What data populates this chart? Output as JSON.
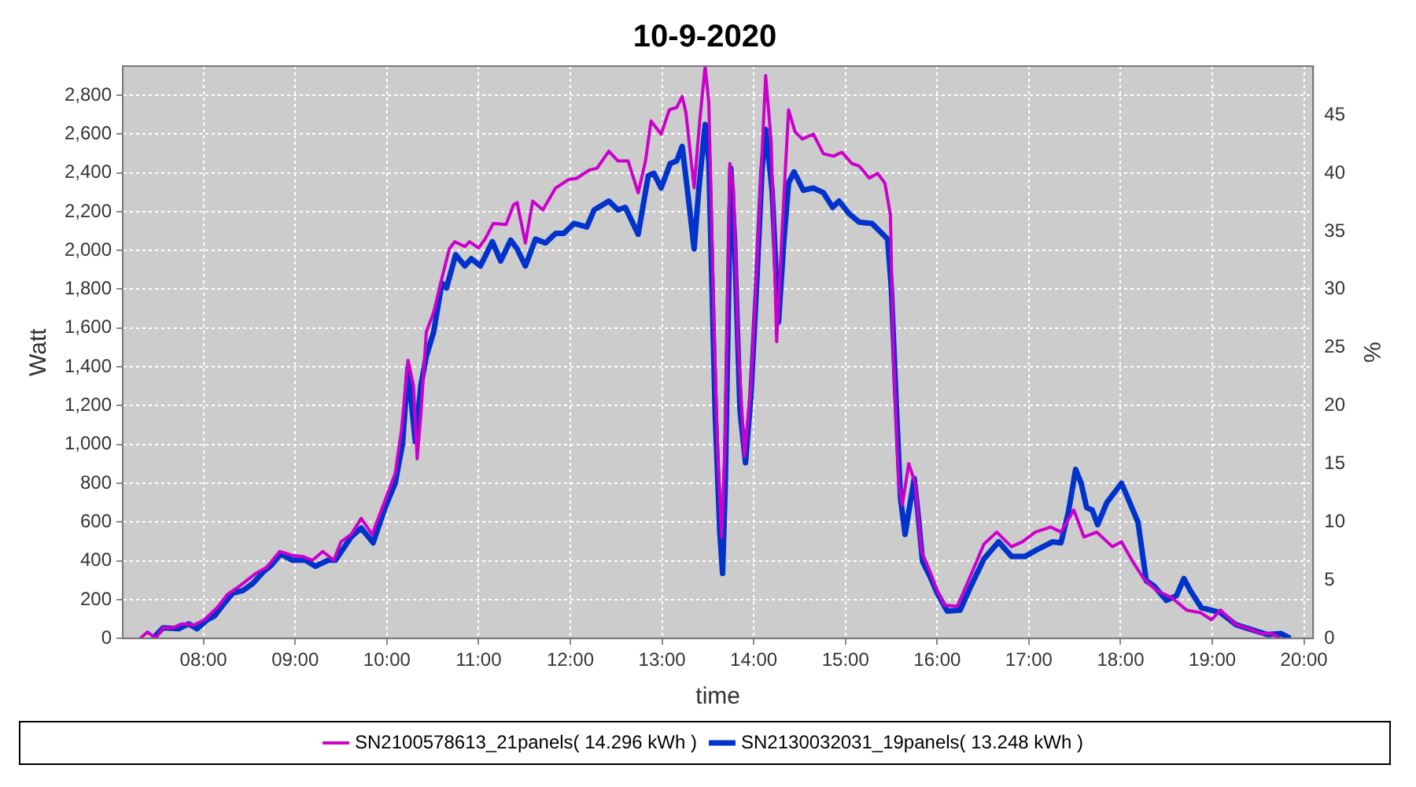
{
  "chart_data": {
    "type": "line",
    "title": "10-9-2020",
    "xlabel": "time",
    "ylabel": "Watt",
    "y2label": "%",
    "xlim": [
      7.12,
      20.1
    ],
    "xticks": [
      {
        "value": 8,
        "label": "08:00"
      },
      {
        "value": 9,
        "label": "09:00"
      },
      {
        "value": 10,
        "label": "10:00"
      },
      {
        "value": 11,
        "label": "11:00"
      },
      {
        "value": 12,
        "label": "12:00"
      },
      {
        "value": 13,
        "label": "13:00"
      },
      {
        "value": 14,
        "label": "14:00"
      },
      {
        "value": 15,
        "label": "15:00"
      },
      {
        "value": 16,
        "label": "16:00"
      },
      {
        "value": 17,
        "label": "17:00"
      },
      {
        "value": 18,
        "label": "18:00"
      },
      {
        "value": 19,
        "label": "19:00"
      },
      {
        "value": 20,
        "label": "20:00"
      }
    ],
    "ylim": [
      0,
      2950
    ],
    "yticks": [
      0,
      200,
      400,
      600,
      800,
      {
        "value": 1000,
        "label": "1,000"
      },
      {
        "value": 1200,
        "label": "1,200"
      },
      {
        "value": 1400,
        "label": "1,400"
      },
      {
        "value": 1600,
        "label": "1,600"
      },
      {
        "value": 1800,
        "label": "1,800"
      },
      {
        "value": 2000,
        "label": "2,000"
      },
      {
        "value": 2200,
        "label": "2,200"
      },
      {
        "value": 2400,
        "label": "2,400"
      },
      {
        "value": 2600,
        "label": "2,600"
      },
      {
        "value": 2800,
        "label": "2,800"
      }
    ],
    "y2lim": [
      0,
      49.2
    ],
    "y2ticks": [
      0,
      5,
      10,
      15,
      20,
      25,
      30,
      35,
      40,
      45
    ],
    "grid": true,
    "legend": "bottom",
    "marker": "none",
    "line_style": "solid",
    "series": [
      {
        "name": "SN2100578613_21panels( 14.296 kWh )",
        "color": "#cc00cc",
        "x": [
          7.31,
          7.39,
          7.48,
          7.56,
          7.67,
          7.76,
          7.9,
          8.01,
          8.15,
          8.26,
          8.4,
          8.57,
          8.69,
          8.83,
          8.97,
          9.08,
          9.19,
          9.3,
          9.42,
          9.5,
          9.61,
          9.72,
          9.84,
          9.98,
          10.09,
          10.16,
          10.23,
          10.29,
          10.33,
          10.37,
          10.43,
          10.51,
          10.6,
          10.68,
          10.74,
          10.85,
          10.9,
          11.0,
          11.07,
          11.16,
          11.3,
          11.38,
          11.42,
          11.51,
          11.59,
          11.7,
          11.84,
          11.98,
          12.07,
          12.21,
          12.29,
          12.42,
          12.52,
          12.63,
          12.74,
          12.82,
          12.88,
          12.99,
          13.08,
          13.16,
          13.22,
          13.26,
          13.35,
          13.41,
          13.47,
          13.51,
          13.57,
          13.61,
          13.65,
          13.69,
          13.74,
          13.78,
          13.83,
          13.9,
          13.97,
          14.06,
          14.13,
          14.19,
          14.25,
          14.31,
          14.38,
          14.45,
          14.53,
          14.65,
          14.76,
          14.87,
          14.96,
          15.07,
          15.15,
          15.26,
          15.35,
          15.43,
          15.49,
          15.52,
          15.58,
          15.62,
          15.69,
          15.76,
          15.83,
          15.92,
          16.0,
          16.08,
          16.22,
          16.34,
          16.51,
          16.65,
          16.81,
          16.93,
          17.07,
          17.24,
          17.35,
          17.49,
          17.6,
          17.74,
          17.91,
          18.01,
          18.13,
          18.25,
          18.39,
          18.56,
          18.72,
          18.87,
          18.99,
          19.09,
          19.26,
          19.4,
          19.54,
          19.65,
          19.74
        ],
        "values": [
          0,
          33,
          0,
          55,
          55,
          75,
          70,
          96,
          159,
          226,
          272,
          335,
          367,
          448,
          428,
          423,
          403,
          448,
          403,
          498,
          536,
          619,
          536,
          712,
          850,
          1077,
          1434,
          1303,
          926,
          1152,
          1580,
          1681,
          1857,
          2008,
          2045,
          2020,
          2045,
          2013,
          2058,
          2139,
          2134,
          2234,
          2247,
          2038,
          2254,
          2209,
          2322,
          2365,
          2372,
          2415,
          2423,
          2511,
          2461,
          2461,
          2297,
          2461,
          2667,
          2599,
          2725,
          2737,
          2793,
          2712,
          2322,
          2662,
          2950,
          2763,
          1555,
          926,
          523,
          1052,
          2448,
          2310,
          1505,
          938,
          1303,
          2184,
          2901,
          2561,
          1530,
          2108,
          2725,
          2612,
          2574,
          2599,
          2498,
          2486,
          2506,
          2448,
          2435,
          2373,
          2397,
          2347,
          2184,
          1505,
          800,
          687,
          901,
          800,
          448,
          347,
          247,
          171,
          166,
          297,
          486,
          548,
          473,
          498,
          548,
          574,
          548,
          662,
          523,
          548,
          473,
          498,
          398,
          309,
          247,
          209,
          146,
          133,
          96,
          146,
          70,
          50,
          25,
          25,
          0
        ]
      },
      {
        "name": "SN2130032031_19panels( 13.248 kWh )",
        "color": "#0033cc",
        "x": [
          7.45,
          7.56,
          7.73,
          7.84,
          7.93,
          8.04,
          8.12,
          8.21,
          8.32,
          8.43,
          8.54,
          8.66,
          8.74,
          8.84,
          8.97,
          9.11,
          9.22,
          9.36,
          9.44,
          9.61,
          9.72,
          9.85,
          9.98,
          10.09,
          10.17,
          10.23,
          10.31,
          10.37,
          10.43,
          10.51,
          10.6,
          10.65,
          10.75,
          10.85,
          10.92,
          11.02,
          11.15,
          11.24,
          11.35,
          11.42,
          11.51,
          11.62,
          11.73,
          11.84,
          11.93,
          12.04,
          12.18,
          12.26,
          12.42,
          12.52,
          12.6,
          12.74,
          12.85,
          12.91,
          12.99,
          13.09,
          13.16,
          13.22,
          13.29,
          13.35,
          13.4,
          13.47,
          13.51,
          13.58,
          13.63,
          13.66,
          13.69,
          13.75,
          13.79,
          13.85,
          13.91,
          13.97,
          14.03,
          14.09,
          14.13,
          14.2,
          14.27,
          14.33,
          14.38,
          14.44,
          14.54,
          14.65,
          14.76,
          14.86,
          14.93,
          15.04,
          15.15,
          15.29,
          15.38,
          15.46,
          15.5,
          15.55,
          15.6,
          15.65,
          15.75,
          15.79,
          15.84,
          15.92,
          16.0,
          16.11,
          16.25,
          16.37,
          16.51,
          16.67,
          16.81,
          16.96,
          17.1,
          17.26,
          17.35,
          17.43,
          17.51,
          17.57,
          17.63,
          17.69,
          17.75,
          17.85,
          18.01,
          18.1,
          18.19,
          18.28,
          18.36,
          18.5,
          18.61,
          18.69,
          18.76,
          18.88,
          18.98,
          19.09,
          19.26,
          19.43,
          19.6,
          19.75,
          19.85
        ],
        "values": [
          0,
          55,
          50,
          75,
          50,
          96,
          116,
          171,
          234,
          247,
          284,
          347,
          377,
          435,
          403,
          403,
          372,
          403,
          403,
          523,
          569,
          493,
          674,
          800,
          1001,
          1391,
          1014,
          1303,
          1454,
          1580,
          1832,
          1807,
          1978,
          1920,
          1957,
          1920,
          2045,
          1945,
          2053,
          2008,
          1920,
          2058,
          2038,
          2088,
          2088,
          2139,
          2121,
          2209,
          2254,
          2209,
          2222,
          2083,
          2385,
          2398,
          2322,
          2448,
          2461,
          2536,
          2259,
          2008,
          2310,
          2649,
          2461,
          1152,
          548,
          335,
          800,
          2423,
          2058,
          1177,
          906,
          1253,
          1807,
          2410,
          2624,
          2310,
          1630,
          2058,
          2347,
          2405,
          2310,
          2322,
          2297,
          2222,
          2254,
          2189,
          2146,
          2139,
          2096,
          2058,
          1807,
          1253,
          725,
          536,
          825,
          649,
          398,
          322,
          234,
          141,
          146,
          272,
          410,
          498,
          423,
          423,
          460,
          498,
          493,
          649,
          871,
          800,
          674,
          662,
          586,
          700,
          800,
          700,
          599,
          297,
          272,
          196,
          221,
          309,
          247,
          159,
          146,
          133,
          70,
          45,
          20,
          25,
          0
        ]
      }
    ]
  }
}
